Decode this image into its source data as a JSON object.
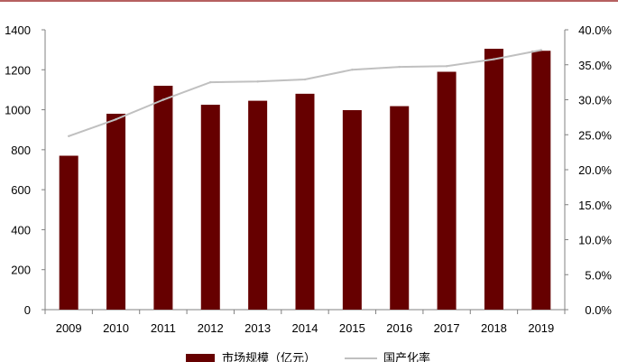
{
  "chart_data": {
    "type": "bar",
    "categories": [
      "2009",
      "2010",
      "2011",
      "2012",
      "2013",
      "2014",
      "2015",
      "2016",
      "2017",
      "2018",
      "2019"
    ],
    "series": [
      {
        "name": "市场规模（亿元）",
        "type": "bar",
        "axis": "left",
        "color": "#660000",
        "values": [
          770,
          980,
          1120,
          1025,
          1045,
          1080,
          998,
          1018,
          1190,
          1305,
          1295
        ]
      },
      {
        "name": "国产化率",
        "type": "line",
        "axis": "right",
        "color": "#c0c0c0",
        "values": [
          24.8,
          27.2,
          30.0,
          32.5,
          32.6,
          32.9,
          34.3,
          34.7,
          34.8,
          35.8,
          37.1
        ]
      }
    ],
    "y_left": {
      "ylim": [
        0,
        1400
      ],
      "ticks": [
        "0",
        "200",
        "400",
        "600",
        "800",
        "1000",
        "1200",
        "1400"
      ]
    },
    "y_right": {
      "ylim": [
        0,
        40
      ],
      "ticks": [
        "0.0%",
        "5.0%",
        "10.0%",
        "15.0%",
        "20.0%",
        "25.0%",
        "30.0%",
        "35.0%",
        "40.0%"
      ]
    },
    "grid": false,
    "legend_position": "bottom",
    "colors": {
      "accent_line": "#8b0000",
      "axis": "#808080"
    }
  }
}
